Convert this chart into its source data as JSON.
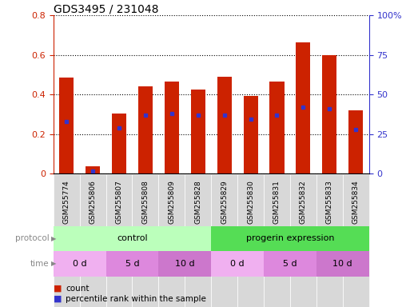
{
  "title": "GDS3495 / 231048",
  "samples": [
    "GSM255774",
    "GSM255806",
    "GSM255807",
    "GSM255808",
    "GSM255809",
    "GSM255828",
    "GSM255829",
    "GSM255830",
    "GSM255831",
    "GSM255832",
    "GSM255833",
    "GSM255834"
  ],
  "bar_heights": [
    0.485,
    0.038,
    0.305,
    0.44,
    0.465,
    0.425,
    0.49,
    0.395,
    0.465,
    0.665,
    0.6,
    0.32
  ],
  "blue_dots": [
    0.265,
    0.015,
    0.23,
    0.295,
    0.305,
    0.295,
    0.295,
    0.275,
    0.295,
    0.335,
    0.33,
    0.225
  ],
  "bar_color": "#cc2200",
  "dot_color": "#3333cc",
  "ylim_left": [
    0,
    0.8
  ],
  "ylim_right": [
    0,
    100
  ],
  "yticks_left": [
    0,
    0.2,
    0.4,
    0.6,
    0.8
  ],
  "yticks_right": [
    0,
    25,
    50,
    75,
    100
  ],
  "ytick_labels_left": [
    "0",
    "0.2",
    "0.4",
    "0.6",
    "0.8"
  ],
  "ytick_labels_right": [
    "0",
    "25",
    "50",
    "75",
    "100%"
  ],
  "protocol_groups": [
    {
      "text": "control",
      "span": [
        0,
        6
      ],
      "color": "#bbffbb"
    },
    {
      "text": "progerin expression",
      "span": [
        6,
        12
      ],
      "color": "#55dd55"
    }
  ],
  "time_groups": [
    {
      "text": "0 d",
      "span": [
        0,
        2
      ],
      "color": "#f0b0f0"
    },
    {
      "text": "5 d",
      "span": [
        2,
        4
      ],
      "color": "#dd88dd"
    },
    {
      "text": "10 d",
      "span": [
        4,
        6
      ],
      "color": "#cc77cc"
    },
    {
      "text": "0 d",
      "span": [
        6,
        8
      ],
      "color": "#f0b0f0"
    },
    {
      "text": "5 d",
      "span": [
        8,
        10
      ],
      "color": "#dd88dd"
    },
    {
      "text": "10 d",
      "span": [
        10,
        12
      ],
      "color": "#cc77cc"
    }
  ],
  "tick_label_color_left": "#cc2200",
  "tick_label_color_right": "#3333cc",
  "bar_width": 0.55,
  "title_fontsize": 10,
  "axis_tick_fontsize": 8,
  "sample_label_fontsize": 6.5,
  "row_label_color": "#888888",
  "sample_box_color": "#d8d8d8"
}
